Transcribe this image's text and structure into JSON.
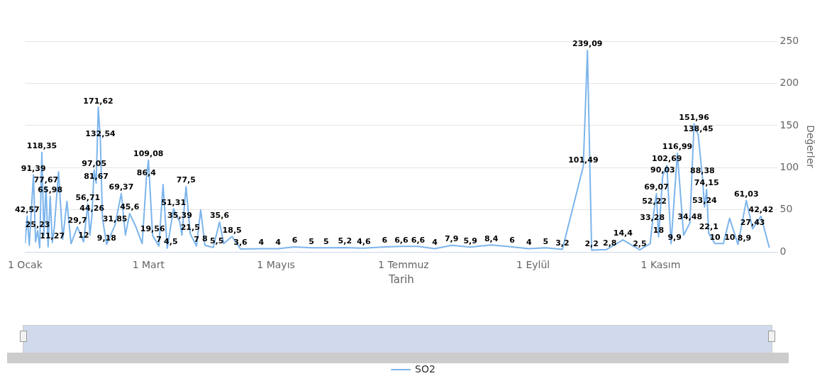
{
  "chart_data": {
    "type": "line",
    "xlabel": "Tarih",
    "ylabel": "Değerler",
    "x": [
      "--01-01",
      "--01-02",
      "--01-03",
      "--01-05",
      "--01-06",
      "--01-07",
      "--01-08",
      "--01-09",
      "--01-10",
      "--01-11",
      "--01-12",
      "--01-13",
      "--01-14",
      "--01-15",
      "--01-17",
      "--01-19",
      "--01-21",
      "--01-23",
      "--01-26",
      "--01-29",
      "--01-31",
      "--02-01",
      "--02-02",
      "--02-03",
      "--02-04",
      "--02-05",
      "--02-06",
      "--02-07",
      "--02-09",
      "--02-13",
      "--02-16",
      "--02-18",
      "--02-20",
      "--02-23",
      "--02-26",
      "--02-28",
      "--03-01",
      "--03-03",
      "--03-06",
      "--03-08",
      "--03-10",
      "--03-13",
      "--03-16",
      "--03-17",
      "--03-19",
      "--03-21",
      "--03-24",
      "--03-26",
      "--03-28",
      "--04-01",
      "--04-04",
      "--04-06",
      "--04-10",
      "--04-14",
      "--04-24",
      "--05-02",
      "--05-10",
      "--05-18",
      "--05-25",
      "--06-03",
      "--06-12",
      "--06-22",
      "--06-30",
      "--07-08",
      "--07-16",
      "--07-24",
      "--08-02",
      "--08-12",
      "--08-22",
      "--08-30",
      "--09-07",
      "--09-15",
      "--09-25",
      "--09-27",
      "--09-29",
      "--10-06",
      "--10-14",
      "--10-22",
      "--10-27",
      "--10-28",
      "--10-29",
      "--10-30",
      "--10-31",
      "--11-02",
      "--11-04",
      "--11-06",
      "--11-09",
      "--11-12",
      "--11-15",
      "--11-17",
      "--11-19",
      "--11-21",
      "--11-22",
      "--11-23",
      "--11-24",
      "--11-27",
      "--12-01",
      "--12-04",
      "--12-08",
      "--12-12",
      "--12-15",
      "--12-19",
      "--12-23"
    ],
    "series": [
      {
        "name": "SO2",
        "color": "#7cb5ec",
        "values": [
          10,
          42.57,
          8,
          91.39,
          12,
          25.23,
          5,
          118.35,
          20,
          77.67,
          6,
          65.98,
          11.27,
          30,
          95,
          15,
          60,
          10,
          29.7,
          12,
          56.71,
          20,
          44.26,
          97.05,
          81.67,
          171.62,
          132.54,
          40,
          9.18,
          31.85,
          69.37,
          20,
          45.6,
          30,
          10,
          86.4,
          109.08,
          19.56,
          7,
          80,
          4.5,
          51.31,
          35.39,
          20,
          77.5,
          21.5,
          7,
          50,
          8,
          5.5,
          35.6,
          10,
          18.5,
          3.6,
          4,
          4,
          6,
          5,
          5,
          5.2,
          4.6,
          6,
          6.6,
          6.6,
          4,
          7.9,
          5.9,
          8.4,
          6,
          4,
          5,
          3.2,
          101.49,
          239.09,
          2.2,
          2.8,
          14.4,
          2.5,
          10,
          33.28,
          52.22,
          69.07,
          18,
          90.03,
          102.69,
          9.9,
          116.99,
          20,
          34.48,
          151.96,
          138.45,
          88.38,
          53.24,
          74.15,
          22.1,
          10,
          10,
          40,
          8.9,
          61.03,
          27.43,
          42.42,
          5
        ],
        "value_labels": [
          null,
          "42,57",
          null,
          "91,39",
          null,
          "25,23",
          null,
          "118,35",
          null,
          "77,67",
          null,
          "65,98",
          "11,27",
          null,
          null,
          null,
          null,
          null,
          "29,7",
          "12",
          "56,71",
          null,
          "44,26",
          "97,05",
          "81,67",
          "171,62",
          "132,54",
          null,
          "9,18",
          "31,85",
          "69,37",
          null,
          "45,6",
          null,
          null,
          "86,4",
          "109,08",
          "19,56",
          "7",
          null,
          "4,5",
          "51,31",
          "35,39",
          null,
          "77,5",
          "21,5",
          "7",
          null,
          "8",
          "5,5",
          "35,6",
          null,
          "18,5",
          "3,6",
          "4",
          "4",
          "6",
          "5",
          "5",
          "5,2",
          "4,6",
          "6",
          "6,6",
          "6,6",
          "4",
          "7,9",
          "5,9",
          "8,4",
          "6",
          "4",
          "5",
          "3,2",
          "101,49",
          "239,09",
          "2,2",
          "2,8",
          "14,4",
          "2,5",
          null,
          "33,28",
          "52,22",
          "69,07",
          "18",
          "90,03",
          "102,69",
          "9,9",
          "116,99",
          null,
          "34,48",
          "151,96",
          "138,45",
          "88,38",
          "53,24",
          "74,15",
          "22,1",
          "10",
          "10",
          null,
          "8,9",
          "61,03",
          "27,43",
          "42,42",
          null
        ]
      }
    ],
    "xlim": [
      "--01-01",
      "--12-27"
    ],
    "xticks": [
      {
        "value": "--01-01",
        "label": "1 Ocak"
      },
      {
        "value": "--03-01",
        "label": "1 Mart"
      },
      {
        "value": "--05-01",
        "label": "1 Mayıs"
      },
      {
        "value": "--07-01",
        "label": "1 Temmuz"
      },
      {
        "value": "--09-01",
        "label": "1 Eylül"
      },
      {
        "value": "--11-01",
        "label": "1 Kasım"
      }
    ],
    "ylim": [
      0,
      250
    ],
    "yticks": [
      0,
      50,
      100,
      150,
      200,
      250
    ],
    "grid": "y",
    "legend": "bottom",
    "marker": "none",
    "line_style": "solid"
  }
}
